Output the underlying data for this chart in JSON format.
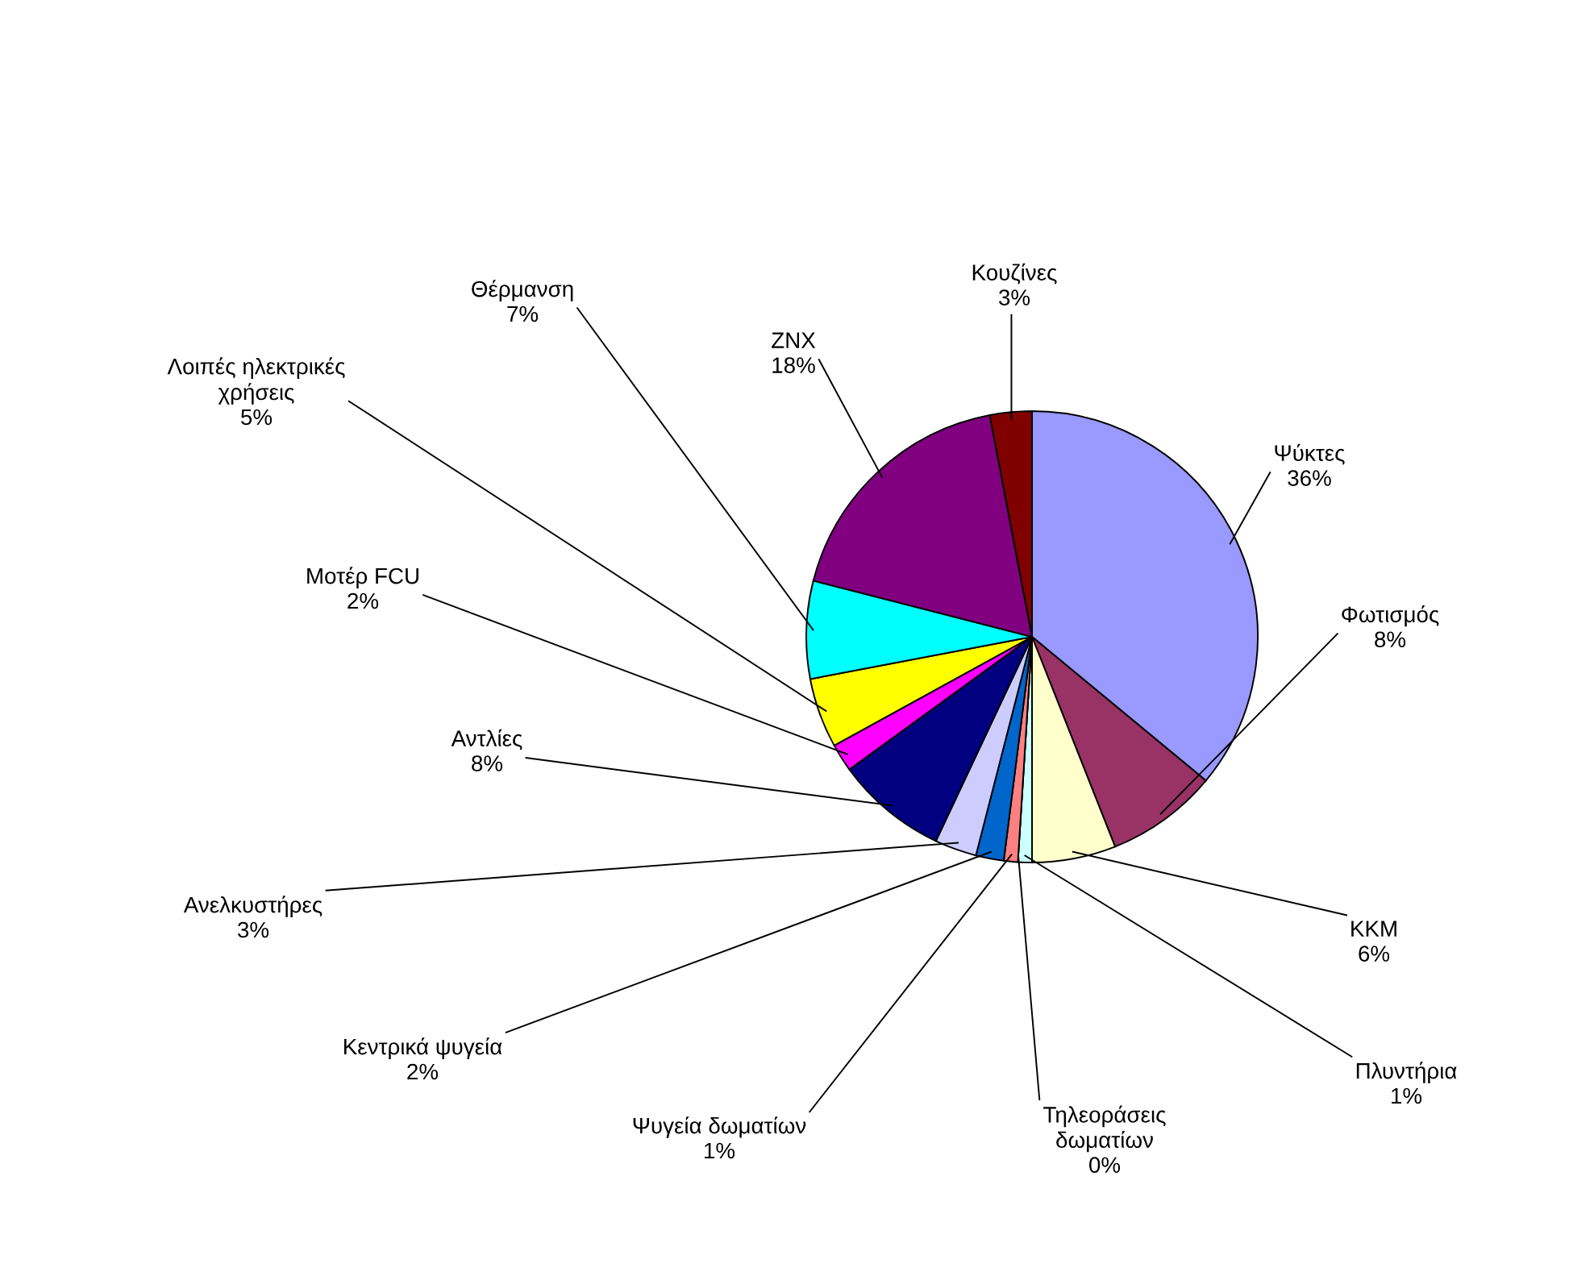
{
  "chart_data": {
    "type": "pie",
    "categories": [
      "Ψύκτες",
      "Φωτισμός",
      "ΚΚΜ",
      "Πλυντήρια",
      "Τηλεοράσεις δωματίων",
      "Ψυγεία δωματίων",
      "Κεντρικά ψυγεία",
      "Ανελκυστήρες",
      "Αντλίες",
      "Μοτέρ FCU",
      "Λοιπές ηλεκτρικές χρήσεις",
      "Θέρμανση",
      "ZNX",
      "Κουζίνες"
    ],
    "values": [
      36,
      8,
      6,
      1,
      0,
      1,
      2,
      3,
      8,
      2,
      5,
      7,
      18,
      3
    ],
    "value_labels": [
      "36%",
      "8%",
      "6%",
      "1%",
      "0%",
      "1%",
      "2%",
      "3%",
      "8%",
      "2%",
      "5%",
      "7%",
      "18%",
      "3%"
    ],
    "colors": [
      "#9999ff",
      "#993366",
      "#ffffcc",
      "#ccffff",
      "#660066",
      "#ff8080",
      "#0066cc",
      "#ccccff",
      "#000080",
      "#ff00ff",
      "#ffff00",
      "#00ffff",
      "#800080",
      "#800000"
    ],
    "legend": false
  }
}
